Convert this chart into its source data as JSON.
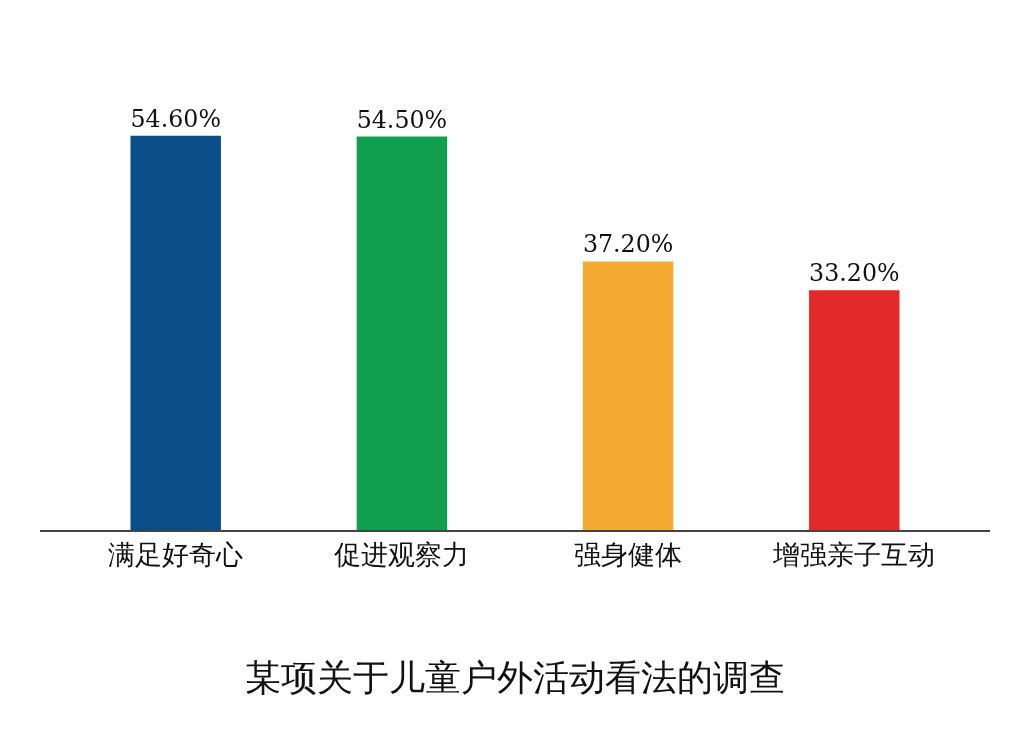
{
  "chart_data": {
    "type": "bar",
    "title": "某项关于儿童户外活动看法的调查",
    "categories": [
      "满足好奇心",
      "促进观察力",
      "强身健体",
      "增强亲子互动"
    ],
    "values": [
      54.6,
      54.5,
      37.2,
      33.2
    ],
    "value_labels": [
      "54.60%",
      "54.50%",
      "37.20%",
      "33.20%"
    ],
    "colors": [
      "#0b4f8a",
      "#0f9f4e",
      "#f5aa33",
      "#e4292a"
    ],
    "legend": false
  }
}
